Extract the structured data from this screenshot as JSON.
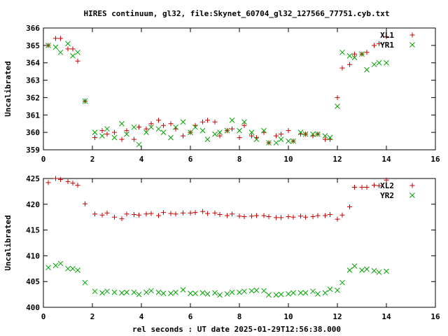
{
  "title": "HIRES continuum, gl32, file:Skynet_60704_gl32_127566_77751.cyb.txt",
  "xlabel": "rel seconds : UT date 2025-01-29T12:56:38.000",
  "colors": {
    "series1": "#cc0000",
    "series2": "#00a000",
    "axis": "#000000"
  },
  "chart_data": [
    {
      "type": "scatter",
      "ylabel": "Uncalibrated",
      "xlim": [
        0,
        16
      ],
      "ylim": [
        359,
        366
      ],
      "xticks": [
        0,
        2,
        4,
        6,
        8,
        10,
        12,
        14,
        16
      ],
      "yticks": [
        359,
        360,
        361,
        362,
        363,
        364,
        365,
        366
      ],
      "legend": "top-right",
      "grid": false,
      "series": [
        {
          "name": "XL1",
          "marker": "plus",
          "x": [
            0.2,
            0.5,
            0.7,
            1.0,
            1.2,
            1.4,
            1.7,
            2.1,
            2.4,
            2.6,
            2.9,
            3.2,
            3.4,
            3.7,
            3.9,
            4.2,
            4.4,
            4.7,
            4.9,
            5.2,
            5.4,
            5.7,
            6.0,
            6.2,
            6.5,
            6.7,
            7.0,
            7.2,
            7.5,
            7.7,
            8.0,
            8.2,
            8.5,
            8.7,
            9.0,
            9.2,
            9.5,
            9.7,
            10.0,
            10.2,
            10.5,
            10.7,
            11.0,
            11.2,
            11.5,
            11.7,
            12.0,
            12.2,
            12.5,
            12.7,
            13.0,
            13.2,
            13.5,
            13.7,
            14.0
          ],
          "y": [
            365.0,
            365.4,
            365.4,
            364.8,
            364.8,
            364.1,
            361.8,
            359.7,
            360.1,
            359.9,
            360.0,
            359.6,
            360.1,
            359.6,
            360.3,
            360.2,
            360.5,
            360.7,
            360.4,
            360.5,
            360.2,
            359.8,
            360.0,
            360.4,
            360.6,
            360.7,
            360.6,
            359.8,
            360.1,
            360.2,
            359.7,
            360.4,
            359.8,
            359.7,
            360.0,
            359.4,
            359.8,
            359.9,
            360.1,
            359.5,
            359.9,
            359.9,
            359.8,
            359.9,
            359.6,
            359.6,
            362.0,
            363.7,
            363.9,
            364.5,
            364.5,
            364.6,
            365.0,
            365.1,
            365.5
          ]
        },
        {
          "name": "YR1",
          "marker": "cross",
          "x": [
            0.2,
            0.5,
            0.7,
            1.0,
            1.2,
            1.4,
            1.7,
            2.1,
            2.4,
            2.6,
            2.9,
            3.2,
            3.4,
            3.7,
            3.9,
            4.2,
            4.4,
            4.7,
            4.9,
            5.2,
            5.4,
            5.7,
            6.0,
            6.2,
            6.5,
            6.7,
            7.0,
            7.2,
            7.5,
            7.7,
            8.0,
            8.2,
            8.5,
            8.7,
            9.0,
            9.2,
            9.5,
            9.7,
            10.0,
            10.2,
            10.5,
            10.7,
            11.0,
            11.2,
            11.5,
            11.7,
            12.0,
            12.2,
            12.5,
            12.7,
            13.0,
            13.2,
            13.5,
            13.7,
            14.0
          ],
          "y": [
            365.0,
            364.9,
            364.6,
            365.1,
            364.4,
            364.6,
            361.8,
            360.0,
            359.8,
            360.2,
            359.7,
            360.5,
            359.9,
            360.3,
            359.3,
            360.0,
            360.3,
            360.2,
            360.0,
            359.7,
            360.3,
            360.6,
            360.0,
            360.3,
            360.1,
            359.6,
            359.9,
            360.0,
            360.1,
            360.7,
            360.1,
            360.6,
            360.0,
            359.6,
            360.1,
            359.4,
            359.4,
            359.6,
            359.5,
            359.5,
            360.0,
            359.9,
            359.9,
            359.9,
            359.8,
            359.7,
            361.5,
            364.6,
            364.4,
            364.3,
            364.5,
            363.6,
            363.9,
            364.0,
            364.0
          ]
        }
      ]
    },
    {
      "type": "scatter",
      "ylabel": "Uncalibrated",
      "xlim": [
        0,
        16
      ],
      "ylim": [
        400,
        425
      ],
      "xticks": [
        0,
        2,
        4,
        6,
        8,
        10,
        12,
        14,
        16
      ],
      "yticks": [
        400,
        405,
        410,
        415,
        420,
        425
      ],
      "legend": "top-right",
      "grid": false,
      "series": [
        {
          "name": "XL2",
          "marker": "plus",
          "x": [
            0.2,
            0.5,
            0.7,
            1.0,
            1.2,
            1.4,
            1.7,
            2.1,
            2.4,
            2.6,
            2.9,
            3.2,
            3.4,
            3.7,
            3.9,
            4.2,
            4.4,
            4.7,
            4.9,
            5.2,
            5.4,
            5.7,
            6.0,
            6.2,
            6.5,
            6.7,
            7.0,
            7.2,
            7.5,
            7.7,
            8.0,
            8.2,
            8.5,
            8.7,
            9.0,
            9.2,
            9.5,
            9.7,
            10.0,
            10.2,
            10.5,
            10.7,
            11.0,
            11.2,
            11.5,
            11.7,
            12.0,
            12.2,
            12.5,
            12.7,
            13.0,
            13.2,
            13.5,
            13.7,
            14.0
          ],
          "y": [
            424.2,
            425.0,
            424.8,
            424.4,
            424.1,
            423.7,
            420.1,
            418.1,
            417.9,
            418.3,
            417.5,
            417.2,
            418.1,
            418.0,
            417.9,
            418.1,
            418.2,
            417.8,
            418.4,
            418.2,
            418.1,
            418.3,
            418.3,
            418.4,
            418.6,
            418.2,
            418.3,
            418.0,
            417.8,
            418.1,
            417.7,
            417.6,
            417.7,
            417.8,
            417.8,
            417.6,
            417.4,
            417.4,
            417.6,
            417.5,
            417.7,
            417.5,
            417.6,
            417.8,
            417.8,
            418.0,
            417.1,
            417.9,
            419.5,
            423.3,
            423.3,
            423.3,
            423.7,
            423.6,
            424.7
          ]
        },
        {
          "name": "YR2",
          "marker": "cross",
          "x": [
            0.2,
            0.5,
            0.7,
            1.0,
            1.2,
            1.4,
            1.7,
            2.1,
            2.4,
            2.6,
            2.9,
            3.2,
            3.4,
            3.7,
            3.9,
            4.2,
            4.4,
            4.7,
            4.9,
            5.2,
            5.4,
            5.7,
            6.0,
            6.2,
            6.5,
            6.7,
            7.0,
            7.2,
            7.5,
            7.7,
            8.0,
            8.2,
            8.5,
            8.7,
            9.0,
            9.2,
            9.5,
            9.7,
            10.0,
            10.2,
            10.5,
            10.7,
            11.0,
            11.2,
            11.5,
            11.7,
            12.0,
            12.2,
            12.5,
            12.7,
            13.0,
            13.2,
            13.5,
            13.7,
            14.0
          ],
          "y": [
            407.7,
            408.1,
            408.5,
            407.5,
            407.5,
            407.2,
            404.8,
            403.1,
            402.8,
            403.1,
            402.9,
            402.8,
            402.9,
            402.9,
            402.5,
            402.9,
            403.2,
            402.9,
            402.7,
            402.7,
            402.9,
            403.4,
            402.7,
            402.7,
            402.8,
            402.6,
            402.8,
            402.4,
            402.6,
            402.9,
            402.9,
            403.1,
            403.2,
            403.3,
            403.2,
            402.4,
            402.4,
            402.5,
            402.6,
            402.8,
            402.8,
            402.8,
            403.1,
            402.6,
            402.8,
            403.5,
            403.3,
            404.8,
            407.2,
            408.0,
            407.2,
            407.4,
            407.1,
            406.8,
            407.0
          ]
        }
      ]
    }
  ]
}
